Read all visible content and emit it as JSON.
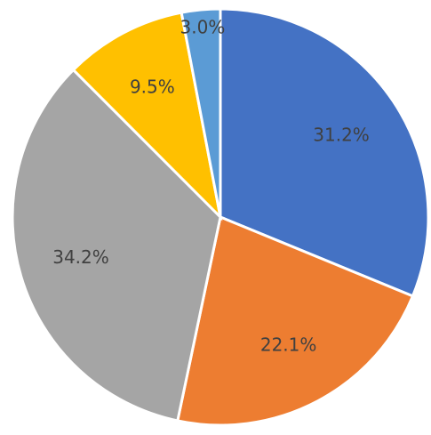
{
  "chart_data": {
    "type": "pie",
    "values": [
      31.2,
      22.1,
      34.2,
      9.5,
      3.0
    ],
    "value_labels": [
      "31.2%",
      "22.1%",
      "34.2%",
      "9.5%",
      "3.0%"
    ],
    "colors": [
      "#4472c4",
      "#ed7d31",
      "#a5a5a5",
      "#ffc000",
      "#5b9bd5"
    ]
  }
}
